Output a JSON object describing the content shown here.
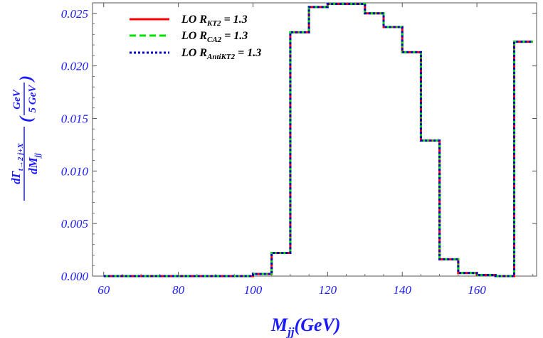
{
  "chart_data": {
    "type": "line",
    "step": true,
    "xlim": [
      57,
      176
    ],
    "ylim": [
      0,
      0.026
    ],
    "x_ticks": [
      "60",
      "80",
      "100",
      "120",
      "140",
      "160"
    ],
    "x_tick_values": [
      60,
      80,
      100,
      120,
      140,
      160
    ],
    "y_ticks": [
      "0.000",
      "0.005",
      "0.010",
      "0.015",
      "0.020",
      "0.025"
    ],
    "y_tick_values": [
      0,
      0.005,
      0.01,
      0.015,
      0.02,
      0.025
    ],
    "xlabel": {
      "main": "M",
      "sub": "jj",
      "rest": "(GeV)"
    },
    "ylabel": {
      "num_d": "dΓ",
      "num_sub": "t→2 j+X",
      "den": "dM",
      "den_sub": "jj",
      "paren_open": "(",
      "unit_num": "GeV",
      "unit_den": "5 GeV",
      "paren_close": ")"
    },
    "bin_edges": [
      60,
      65,
      70,
      75,
      80,
      85,
      90,
      95,
      100,
      105,
      110,
      115,
      120,
      125,
      130,
      135,
      140,
      145,
      150,
      155,
      160,
      165,
      170,
      175
    ],
    "series": [
      {
        "name_main": "LO R",
        "name_sub": "KT2",
        "name_rest": " = 1.3",
        "color": "#ff0000",
        "dash": "solid",
        "values": [
          0,
          0,
          0,
          0,
          0,
          0,
          0,
          0,
          0.0002,
          0.0022,
          0.0232,
          0.0256,
          0.0259,
          0.0259,
          0.025,
          0.0237,
          0.0213,
          0.0129,
          0.0016,
          0.0003,
          0.0001,
          0,
          0.0223
        ]
      },
      {
        "name_main": "LO R",
        "name_sub": "CA2",
        "name_rest": " = 1.3",
        "color": "#00e000",
        "dash": "dashed",
        "values": [
          0,
          0,
          0,
          0,
          0,
          0,
          0,
          0,
          0.0002,
          0.0022,
          0.0232,
          0.0256,
          0.0259,
          0.0259,
          0.025,
          0.0237,
          0.0213,
          0.0129,
          0.0016,
          0.0003,
          0.0001,
          0,
          0.0223
        ]
      },
      {
        "name_main": "LO R",
        "name_sub": "AntiKT2",
        "name_rest": " = 1.3",
        "color": "#0000cc",
        "dash": "dotted",
        "values": [
          0,
          0,
          0,
          0,
          0,
          0,
          0,
          0,
          0.0002,
          0.0022,
          0.0232,
          0.0256,
          0.0259,
          0.0259,
          0.025,
          0.0237,
          0.0213,
          0.0129,
          0.0016,
          0.0003,
          0.0001,
          0,
          0.0223
        ]
      }
    ],
    "legend_position": "top-left",
    "grid": false
  }
}
